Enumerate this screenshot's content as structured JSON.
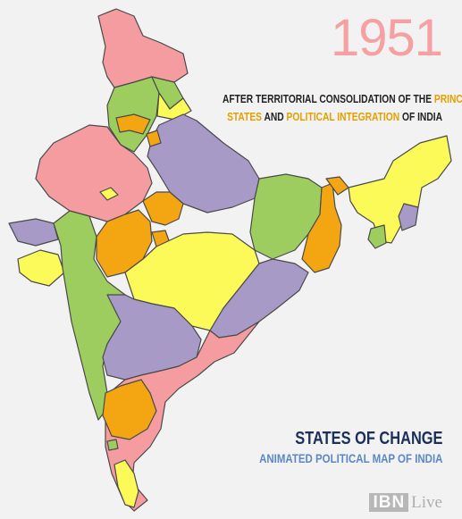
{
  "year": "1951",
  "subtitle": {
    "line1_a": "AFTER TERRITORIAL CONSOLIDATION OF THE ",
    "line1_hl": "PRINCELY",
    "line2_hl1": "STATES",
    "line2_b": " AND ",
    "line2_hl2": "POLITICAL INTEGRATION",
    "line2_c": " OF INDIA"
  },
  "branding": {
    "title": "STATES OF CHANGE",
    "subtitle": "ANIMATED POLITICAL MAP OF INDIA",
    "logo_ibn": "IBN",
    "logo_live": "Live"
  },
  "colors": {
    "background": "#f2f2f2",
    "pink": "#f59ca0",
    "purple": "#a79ac6",
    "green": "#9ecd5f",
    "yellow": "#fbfa59",
    "orange": "#f3a612",
    "year": "#f5a0a2",
    "highlight": "#e5a000",
    "brand_title": "#1b2f5a",
    "brand_sub": "#5b87c7"
  }
}
